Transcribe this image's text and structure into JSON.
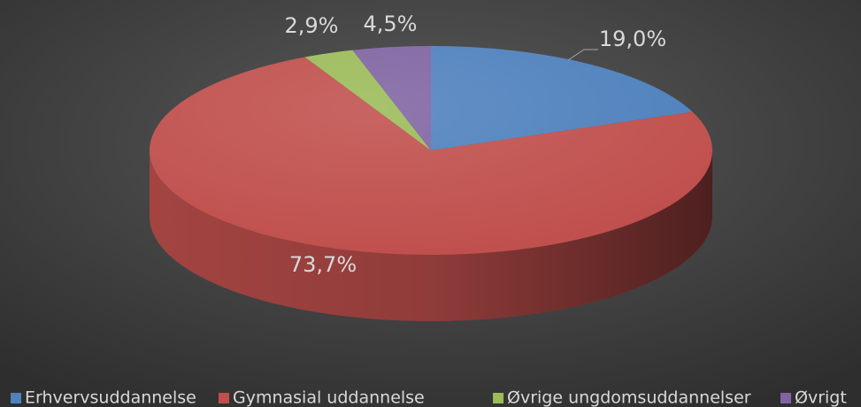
{
  "chart_data": {
    "type": "pie",
    "categories": [
      "Erhvervsuddannelse",
      "Gymnasial uddannelse",
      "Øvrige ungdomsuddannelser",
      "Øvrigt"
    ],
    "values": [
      19.0,
      73.7,
      2.9,
      4.5
    ],
    "value_labels": [
      "19,0%",
      "73,7%",
      "2,9%",
      "4,5%"
    ],
    "colors": [
      "#4f81bd",
      "#c0504d",
      "#9bbb59",
      "#8064a2"
    ],
    "legend": "bottom"
  }
}
